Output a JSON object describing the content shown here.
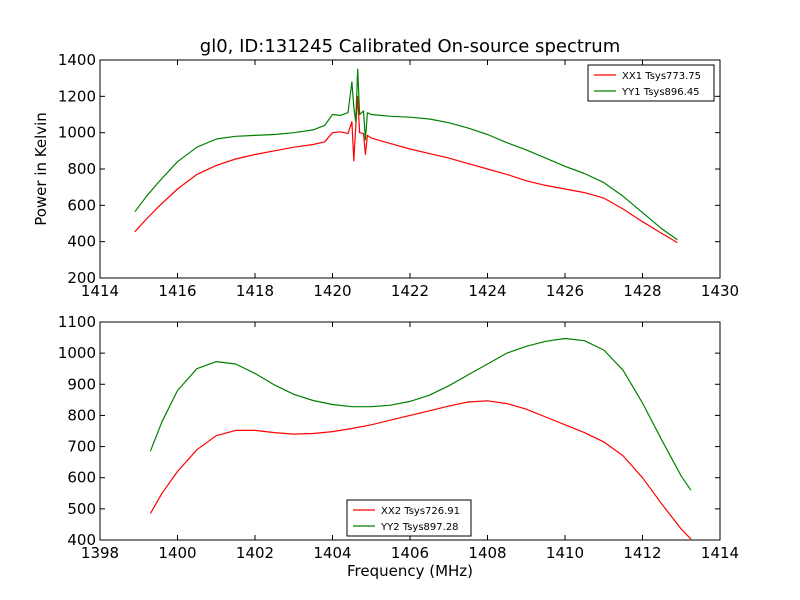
{
  "chart_data": [
    {
      "type": "line",
      "title": "gl0, ID:131245 Calibrated On-source spectrum",
      "xlabel": "",
      "ylabel": "Power in Kelvin",
      "xlim": [
        1414,
        1430
      ],
      "ylim": [
        200,
        1400
      ],
      "xticks": [
        1414,
        1416,
        1418,
        1420,
        1422,
        1424,
        1426,
        1428,
        1430
      ],
      "yticks": [
        200,
        400,
        600,
        800,
        1000,
        1200,
        1400
      ],
      "grid": false,
      "legend_position": "top-right",
      "series": [
        {
          "name": "XX1 Tsys773.75",
          "color": "#ff0000",
          "x": [
            1414.9,
            1415.2,
            1415.5,
            1416.0,
            1416.5,
            1417.0,
            1417.5,
            1418.0,
            1418.5,
            1419.0,
            1419.5,
            1419.8,
            1420.0,
            1420.2,
            1420.4,
            1420.5,
            1420.55,
            1420.6,
            1420.65,
            1420.7,
            1420.8,
            1420.85,
            1420.9,
            1421.0,
            1421.5,
            1422.0,
            1422.5,
            1423.0,
            1423.5,
            1424.0,
            1424.5,
            1425.0,
            1425.5,
            1426.0,
            1426.5,
            1427.0,
            1427.5,
            1428.0,
            1428.5,
            1428.9
          ],
          "y": [
            455,
            525,
            590,
            690,
            770,
            820,
            855,
            880,
            900,
            920,
            935,
            950,
            1000,
            1005,
            995,
            1060,
            845,
            1030,
            1200,
            1000,
            995,
            880,
            985,
            970,
            940,
            910,
            885,
            860,
            830,
            800,
            770,
            735,
            710,
            690,
            670,
            640,
            580,
            510,
            445,
            395
          ]
        },
        {
          "name": "YY1 Tsys896.45",
          "color": "#008000",
          "x": [
            1414.9,
            1415.2,
            1415.5,
            1416.0,
            1416.5,
            1417.0,
            1417.5,
            1418.0,
            1418.5,
            1419.0,
            1419.5,
            1419.8,
            1420.0,
            1420.2,
            1420.4,
            1420.5,
            1420.55,
            1420.6,
            1420.65,
            1420.7,
            1420.8,
            1420.85,
            1420.9,
            1421.0,
            1421.5,
            1422.0,
            1422.5,
            1423.0,
            1423.5,
            1424.0,
            1424.5,
            1425.0,
            1425.5,
            1426.0,
            1426.5,
            1427.0,
            1427.5,
            1428.0,
            1428.5,
            1428.9
          ],
          "y": [
            565,
            650,
            725,
            840,
            920,
            965,
            980,
            985,
            990,
            1000,
            1015,
            1040,
            1100,
            1095,
            1110,
            1280,
            1140,
            1060,
            1350,
            1100,
            1120,
            960,
            1110,
            1100,
            1090,
            1085,
            1075,
            1055,
            1025,
            990,
            945,
            905,
            860,
            815,
            775,
            725,
            650,
            560,
            470,
            410
          ]
        }
      ]
    },
    {
      "type": "line",
      "title": "",
      "xlabel": "Frequency (MHz)",
      "ylabel": "",
      "xlim": [
        1398,
        1414
      ],
      "ylim": [
        400,
        1100
      ],
      "xticks": [
        1398,
        1400,
        1402,
        1404,
        1406,
        1408,
        1410,
        1412,
        1414
      ],
      "yticks": [
        400,
        500,
        600,
        700,
        800,
        900,
        1000,
        1100
      ],
      "grid": false,
      "legend_position": "lower-center",
      "series": [
        {
          "name": "XX2 Tsys726.91",
          "color": "#ff0000",
          "x": [
            1399.3,
            1399.6,
            1400.0,
            1400.5,
            1401.0,
            1401.5,
            1402.0,
            1402.5,
            1403.0,
            1403.5,
            1404.0,
            1404.5,
            1405.0,
            1405.5,
            1406.0,
            1406.5,
            1407.0,
            1407.5,
            1408.0,
            1408.5,
            1409.0,
            1409.5,
            1410.0,
            1410.5,
            1411.0,
            1411.5,
            1412.0,
            1412.5,
            1413.0,
            1413.25
          ],
          "y": [
            485,
            550,
            620,
            690,
            735,
            752,
            752,
            745,
            740,
            742,
            748,
            758,
            770,
            785,
            800,
            815,
            830,
            843,
            847,
            838,
            820,
            795,
            770,
            745,
            715,
            670,
            600,
            515,
            435,
            403
          ]
        },
        {
          "name": "YY2 Tsys897.28",
          "color": "#008000",
          "x": [
            1399.3,
            1399.6,
            1400.0,
            1400.5,
            1401.0,
            1401.5,
            1402.0,
            1402.5,
            1403.0,
            1403.5,
            1404.0,
            1404.5,
            1405.0,
            1405.5,
            1406.0,
            1406.5,
            1407.0,
            1407.5,
            1408.0,
            1408.5,
            1409.0,
            1409.5,
            1410.0,
            1410.5,
            1411.0,
            1411.5,
            1412.0,
            1412.5,
            1413.0,
            1413.25
          ],
          "y": [
            685,
            780,
            880,
            950,
            973,
            965,
            935,
            898,
            868,
            848,
            835,
            828,
            828,
            833,
            845,
            865,
            895,
            930,
            965,
            1000,
            1022,
            1038,
            1047,
            1040,
            1010,
            945,
            840,
            720,
            605,
            560
          ]
        }
      ]
    }
  ]
}
